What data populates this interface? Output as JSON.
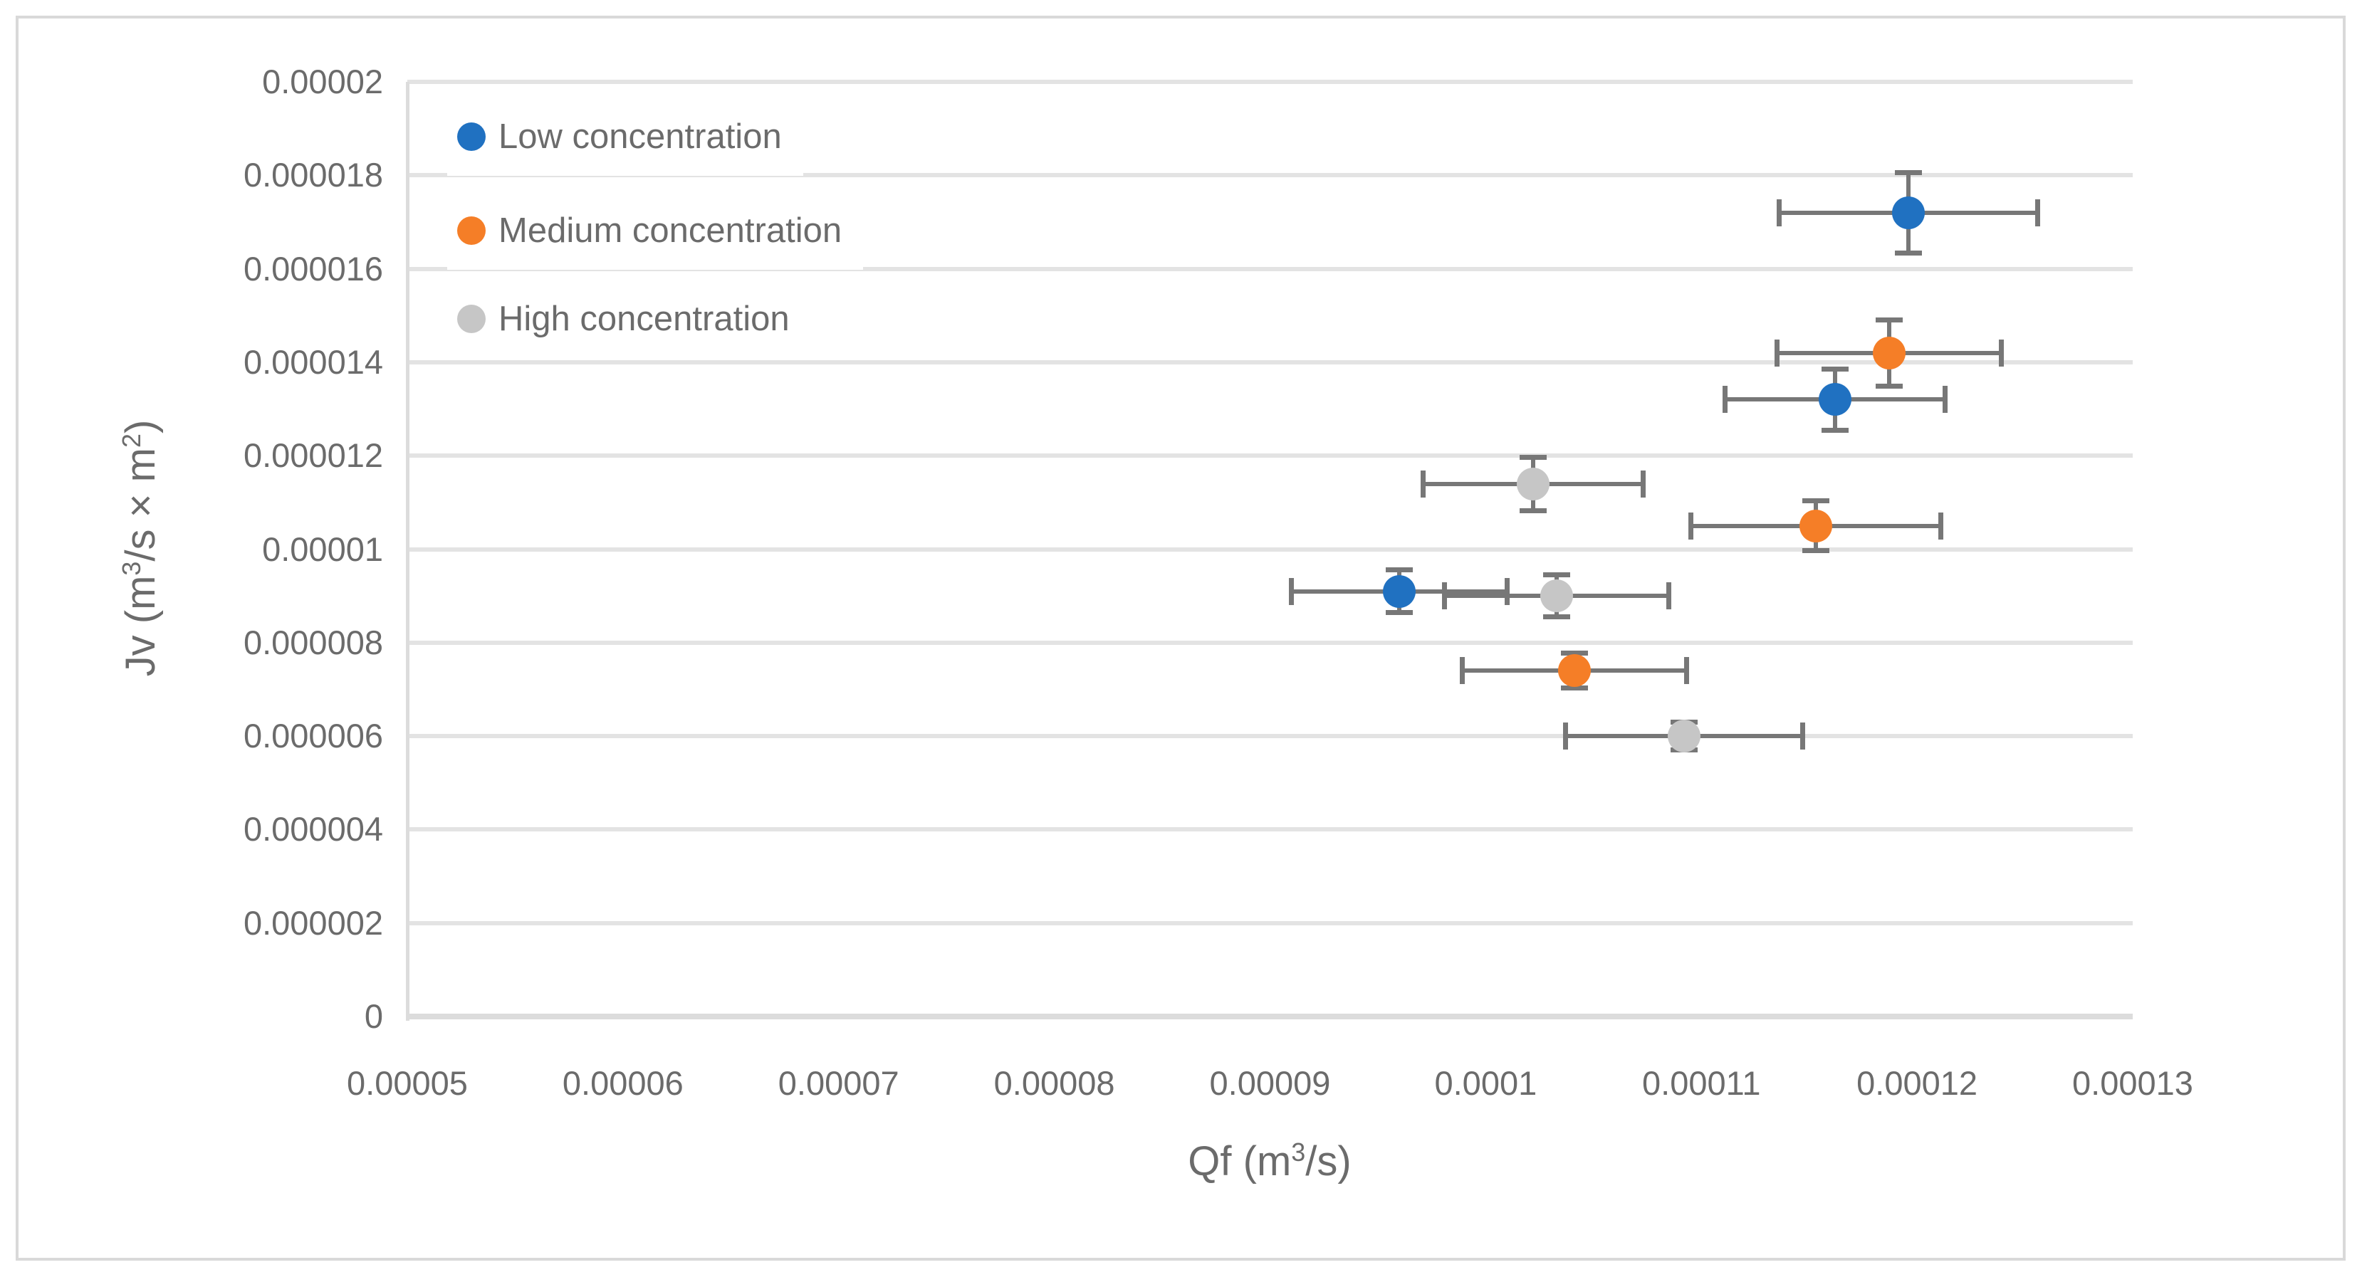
{
  "chart_data": {
    "type": "scatter",
    "title": "",
    "xlabel": "Qf (m³/s)",
    "ylabel": "Jv (m³/s × m²)",
    "xlim": [
      5e-05,
      0.00013
    ],
    "ylim": [
      0,
      2e-05
    ],
    "x_tick_labels": [
      "0.00005",
      "0.00006",
      "0.00007",
      "0.00008",
      "0.00009",
      "0.0001",
      "0.00011",
      "0.00012",
      "0.00013"
    ],
    "y_tick_labels": [
      "0",
      "0.000002",
      "0.000004",
      "0.000006",
      "0.000008",
      "0.00001",
      "0.000012",
      "0.000014",
      "0.000016",
      "0.000018",
      "0.00002"
    ],
    "grid": "horizontal",
    "legend_position": "top-left-inside",
    "error_bars": "xy",
    "series": [
      {
        "name": "Low concentration",
        "color": "#2071C1",
        "points": [
          {
            "x": 0.0001196,
            "y": 1.72e-05,
            "xerr": 6e-06,
            "yerr": 8.6e-07
          },
          {
            "x": 0.0001162,
            "y": 1.32e-05,
            "xerr": 5.1e-06,
            "yerr": 6.6e-07
          },
          {
            "x": 9.6e-05,
            "y": 9.1e-06,
            "xerr": 5e-06,
            "yerr": 4.6e-07
          }
        ]
      },
      {
        "name": "Medium concentration",
        "color": "#F57E27",
        "points": [
          {
            "x": 0.0001187,
            "y": 1.42e-05,
            "xerr": 5.2e-06,
            "yerr": 7.1e-07
          },
          {
            "x": 0.0001153,
            "y": 1.05e-05,
            "xerr": 5.8e-06,
            "yerr": 5.3e-07
          },
          {
            "x": 0.0001041,
            "y": 7.4e-06,
            "xerr": 5.2e-06,
            "yerr": 3.7e-07
          }
        ]
      },
      {
        "name": "High concentration",
        "color": "#C6C6C6",
        "points": [
          {
            "x": 0.0001022,
            "y": 1.14e-05,
            "xerr": 5.1e-06,
            "yerr": 5.7e-07
          },
          {
            "x": 0.0001033,
            "y": 9e-06,
            "xerr": 5.2e-06,
            "yerr": 4.5e-07
          },
          {
            "x": 0.0001092,
            "y": 6e-06,
            "xerr": 5.5e-06,
            "yerr": 3e-07
          }
        ]
      }
    ]
  },
  "styles": {
    "grid_color": "#E3E3E3",
    "axis_line_color": "#DCDCDC",
    "error_bar_color": "#777777",
    "text_color": "#6B6B6B",
    "frame_border_color": "#D9D9D9",
    "background": "#FFFFFF"
  }
}
